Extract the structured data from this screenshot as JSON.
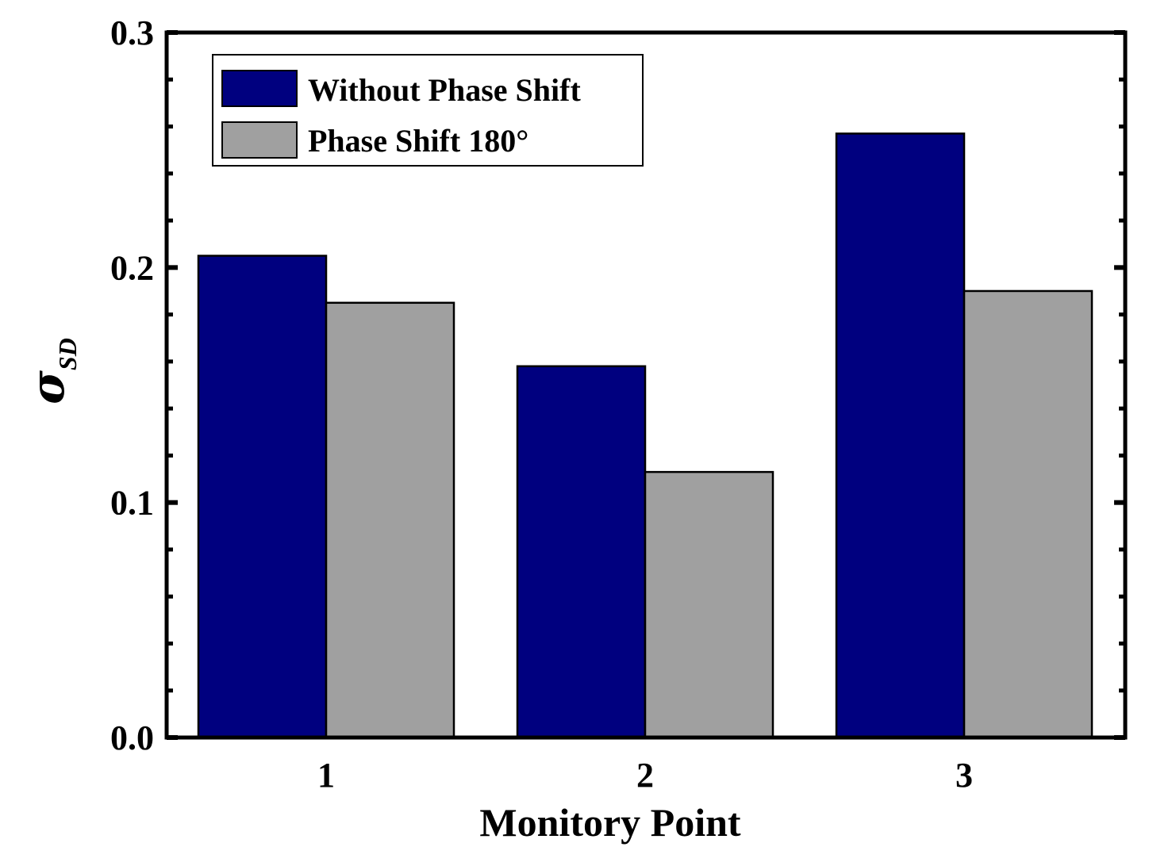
{
  "chart_data": {
    "type": "bar",
    "categories": [
      "1",
      "2",
      "3"
    ],
    "series": [
      {
        "name": "Without Phase Shift",
        "values": [
          0.205,
          0.158,
          0.257
        ],
        "color": "#00007f"
      },
      {
        "name": "Phase Shift 180°",
        "values": [
          0.185,
          0.113,
          0.19
        ],
        "color": "#a0a0a0"
      }
    ],
    "xlabel": "Monitory Point",
    "ylabel_main": "σ",
    "ylabel_sub": "SD",
    "ylim": [
      0,
      0.3
    ],
    "yticks": [
      "0.0",
      "0.1",
      "0.2",
      "0.3"
    ],
    "grid": false,
    "legend_position": "top-left"
  }
}
